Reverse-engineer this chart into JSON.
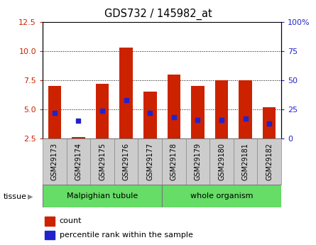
{
  "title": "GDS732 / 145982_at",
  "samples": [
    "GSM29173",
    "GSM29174",
    "GSM29175",
    "GSM29176",
    "GSM29177",
    "GSM29178",
    "GSM29179",
    "GSM29180",
    "GSM29181",
    "GSM29182"
  ],
  "count_bottom": [
    2.5,
    2.4,
    2.5,
    2.5,
    2.5,
    2.5,
    2.5,
    2.5,
    2.5,
    2.5
  ],
  "count_top": [
    7.0,
    2.6,
    7.2,
    10.3,
    6.5,
    8.0,
    7.0,
    7.5,
    7.5,
    5.2
  ],
  "percentile_pct": [
    22,
    15,
    24,
    33,
    22,
    18,
    16,
    16,
    17,
    13
  ],
  "ylim_left": [
    2.5,
    12.5
  ],
  "ylim_right": [
    0,
    100
  ],
  "yticks_left": [
    2.5,
    5.0,
    7.5,
    10.0,
    12.5
  ],
  "yticks_right": [
    0,
    25,
    50,
    75,
    100
  ],
  "group1_label": "Malpighian tubule",
  "group2_label": "whole organism",
  "group_color": "#66DD66",
  "bar_color": "#CC2200",
  "dot_color": "#2222CC",
  "bar_width": 0.55,
  "tick_label_bg": "#CCCCCC",
  "tissue_label": "tissue",
  "legend_count": "count",
  "legend_percentile": "percentile rank within the sample",
  "left_axis_color": "#CC2200",
  "right_axis_color": "#2222CC"
}
